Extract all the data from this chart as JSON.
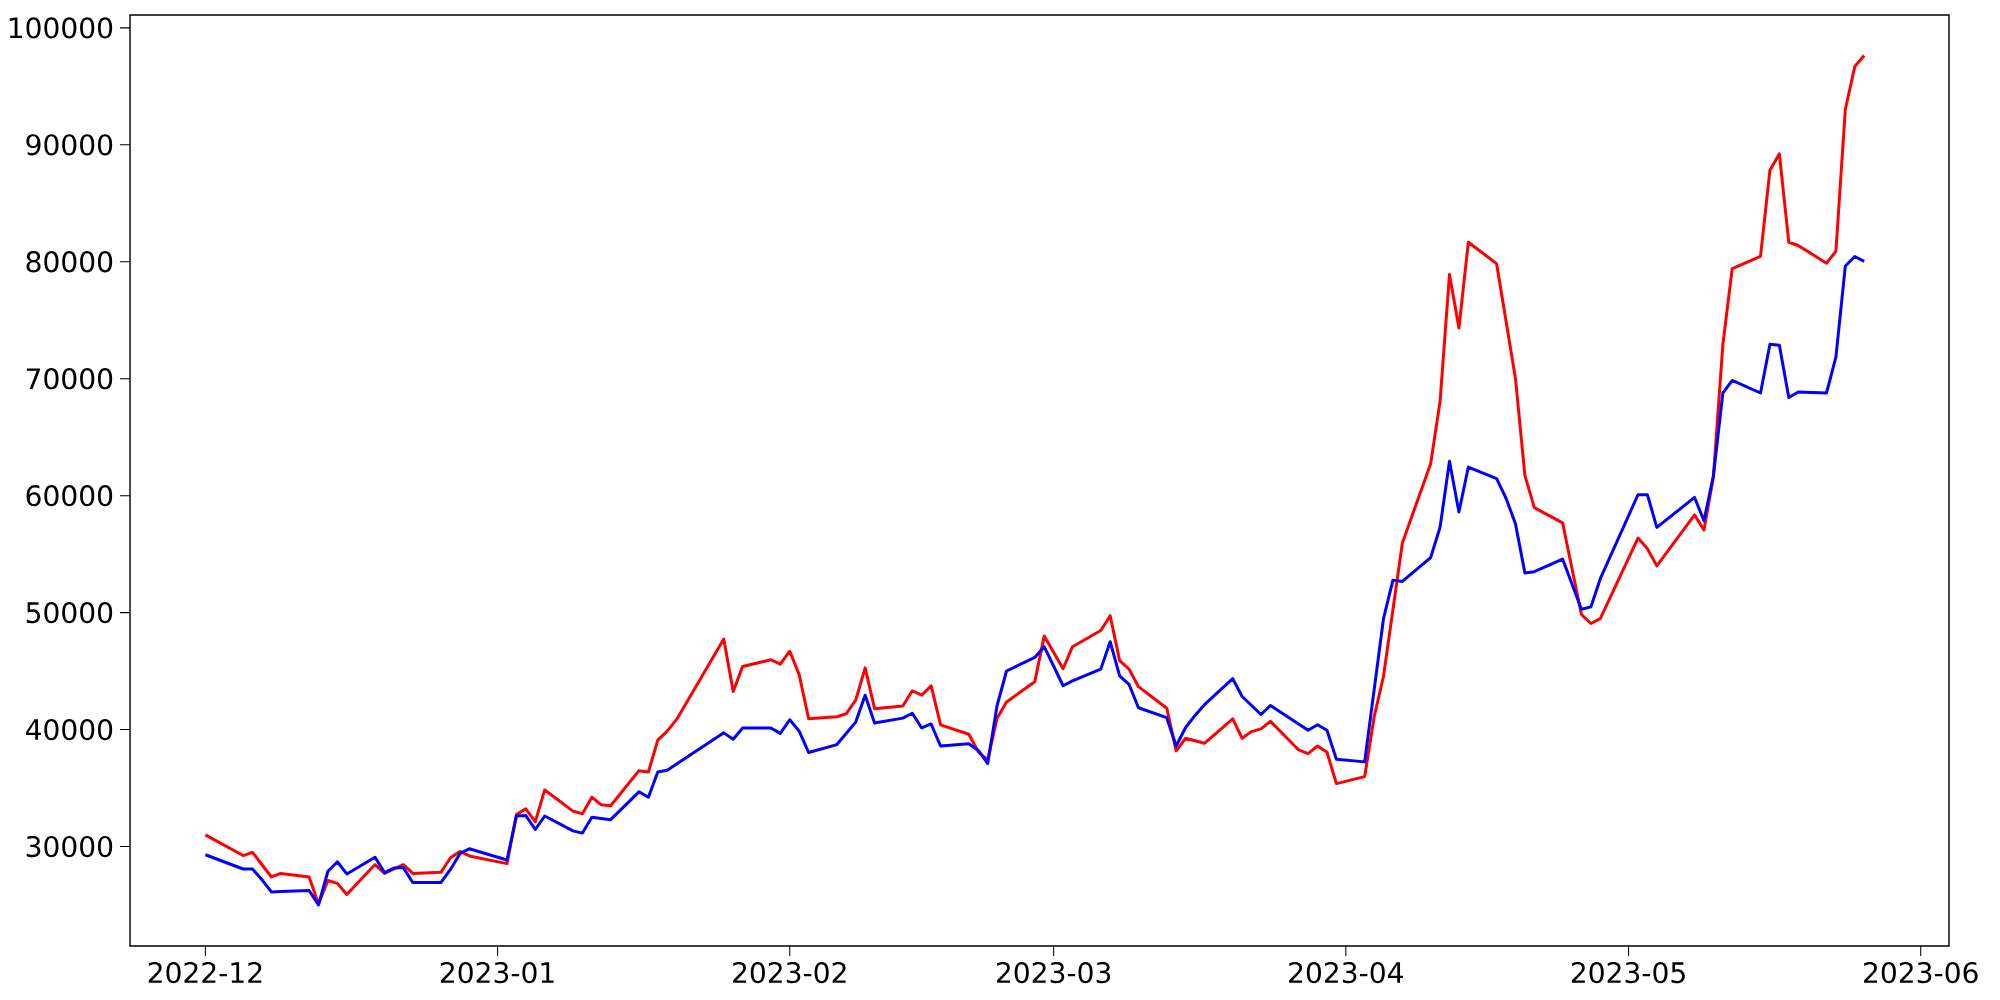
{
  "chart_data": {
    "type": "line",
    "xlim": [
      "2022-11-23",
      "2023-06-04"
    ],
    "ylim": [
      21500,
      101100
    ],
    "xticks": [
      {
        "value": "2022-12-01",
        "label": "2022-12"
      },
      {
        "value": "2023-01-01",
        "label": "2023-01"
      },
      {
        "value": "2023-02-01",
        "label": "2023-02"
      },
      {
        "value": "2023-03-01",
        "label": "2023-03"
      },
      {
        "value": "2023-04-01",
        "label": "2023-04"
      },
      {
        "value": "2023-05-01",
        "label": "2023-05"
      },
      {
        "value": "2023-06-01",
        "label": "2023-06"
      }
    ],
    "yticks": [
      30000,
      40000,
      50000,
      60000,
      70000,
      80000,
      90000,
      100000
    ],
    "grid": false,
    "marker": "none",
    "line_style": "solid",
    "series": [
      {
        "color": "#ff0000",
        "x": [
          "2022-12-01",
          "2022-12-05",
          "2022-12-06",
          "2022-12-08",
          "2022-12-09",
          "2022-12-12",
          "2022-12-13",
          "2022-12-14",
          "2022-12-15",
          "2022-12-16",
          "2022-12-19",
          "2022-12-20",
          "2022-12-22",
          "2022-12-23",
          "2022-12-26",
          "2022-12-27",
          "2022-12-28",
          "2022-12-29",
          "2023-01-02",
          "2023-01-03",
          "2023-01-04",
          "2023-01-05",
          "2023-01-06",
          "2023-01-09",
          "2023-01-10",
          "2023-01-11",
          "2023-01-12",
          "2023-01-13",
          "2023-01-16",
          "2023-01-17",
          "2023-01-18",
          "2023-01-19",
          "2023-01-20",
          "2023-01-25",
          "2023-01-26",
          "2023-01-27",
          "2023-01-30",
          "2023-01-31",
          "2023-02-01",
          "2023-02-02",
          "2023-02-03",
          "2023-02-06",
          "2023-02-07",
          "2023-02-08",
          "2023-02-09",
          "2023-02-10",
          "2023-02-13",
          "2023-02-14",
          "2023-02-15",
          "2023-02-16",
          "2023-02-17",
          "2023-02-20",
          "2023-02-21",
          "2023-02-22",
          "2023-02-23",
          "2023-02-24",
          "2023-02-27",
          "2023-02-28",
          "2023-03-02",
          "2023-03-03",
          "2023-03-06",
          "2023-03-07",
          "2023-03-08",
          "2023-03-09",
          "2023-03-10",
          "2023-03-13",
          "2023-03-14",
          "2023-03-15",
          "2023-03-17",
          "2023-03-20",
          "2023-03-21",
          "2023-03-22",
          "2023-03-23",
          "2023-03-24",
          "2023-03-27",
          "2023-03-28",
          "2023-03-29",
          "2023-03-30",
          "2023-03-31",
          "2023-04-03",
          "2023-04-04",
          "2023-04-05",
          "2023-04-07",
          "2023-04-10",
          "2023-04-11",
          "2023-04-12",
          "2023-04-13",
          "2023-04-14",
          "2023-04-17",
          "2023-04-19",
          "2023-04-20",
          "2023-04-21",
          "2023-04-24",
          "2023-04-26",
          "2023-04-27",
          "2023-04-28",
          "2023-05-02",
          "2023-05-03",
          "2023-05-04",
          "2023-05-08",
          "2023-05-09",
          "2023-05-10",
          "2023-05-11",
          "2023-05-12",
          "2023-05-15",
          "2023-05-16",
          "2023-05-17",
          "2023-05-18",
          "2023-05-19",
          "2023-05-22",
          "2023-05-23",
          "2023-05-24",
          "2023-05-25",
          "2023-05-26"
        ],
        "values": [
          31000,
          29230,
          29500,
          27400,
          27700,
          27400,
          25100,
          27100,
          26850,
          25900,
          28460,
          27700,
          28460,
          27700,
          27800,
          29040,
          29580,
          29200,
          28540,
          32730,
          33230,
          32110,
          34840,
          33030,
          32800,
          34220,
          33570,
          33490,
          36490,
          36370,
          39100,
          39870,
          40870,
          47740,
          43250,
          45400,
          45970,
          45590,
          46700,
          44700,
          40930,
          41100,
          41370,
          42520,
          45280,
          41790,
          42020,
          43320,
          42940,
          43750,
          40410,
          39600,
          38100,
          37410,
          40980,
          42360,
          44090,
          48010,
          45200,
          47090,
          48470,
          49740,
          45900,
          45170,
          43670,
          41830,
          38180,
          39260,
          38830,
          40910,
          39260,
          39830,
          40060,
          40710,
          38260,
          37950,
          38600,
          38060,
          35380,
          35980,
          41060,
          44560,
          55960,
          62720,
          68070,
          78920,
          74330,
          81670,
          79840,
          70020,
          61730,
          58980,
          57680,
          49840,
          49070,
          49490,
          56380,
          55470,
          54000,
          58360,
          57060,
          61600,
          72880,
          79420,
          80460,
          87830,
          89230,
          81670,
          81390,
          79880,
          80900,
          93020,
          96690,
          97640
        ]
      },
      {
        "color": "#0000ff",
        "x": [
          "2022-12-01",
          "2022-12-05",
          "2022-12-06",
          "2022-12-07",
          "2022-12-08",
          "2022-12-09",
          "2022-12-12",
          "2022-12-13",
          "2022-12-14",
          "2022-12-15",
          "2022-12-16",
          "2022-12-19",
          "2022-12-20",
          "2022-12-21",
          "2022-12-22",
          "2022-12-23",
          "2022-12-26",
          "2022-12-27",
          "2022-12-28",
          "2022-12-29",
          "2023-01-02",
          "2023-01-03",
          "2023-01-04",
          "2023-01-05",
          "2023-01-06",
          "2023-01-09",
          "2023-01-10",
          "2023-01-11",
          "2023-01-13",
          "2023-01-16",
          "2023-01-17",
          "2023-01-18",
          "2023-01-19",
          "2023-01-25",
          "2023-01-26",
          "2023-01-27",
          "2023-01-30",
          "2023-01-31",
          "2023-02-01",
          "2023-02-02",
          "2023-02-03",
          "2023-02-06",
          "2023-02-08",
          "2023-02-09",
          "2023-02-10",
          "2023-02-13",
          "2023-02-14",
          "2023-02-15",
          "2023-02-16",
          "2023-02-17",
          "2023-02-20",
          "2023-02-21",
          "2023-02-22",
          "2023-02-23",
          "2023-02-24",
          "2023-02-27",
          "2023-02-28",
          "2023-03-02",
          "2023-03-03",
          "2023-03-06",
          "2023-03-07",
          "2023-03-08",
          "2023-03-09",
          "2023-03-10",
          "2023-03-13",
          "2023-03-14",
          "2023-03-15",
          "2023-03-16",
          "2023-03-17",
          "2023-03-20",
          "2023-03-21",
          "2023-03-23",
          "2023-03-24",
          "2023-03-28",
          "2023-03-29",
          "2023-03-30",
          "2023-03-31",
          "2023-04-03",
          "2023-04-05",
          "2023-04-06",
          "2023-04-07",
          "2023-04-10",
          "2023-04-11",
          "2023-04-12",
          "2023-04-13",
          "2023-04-14",
          "2023-04-17",
          "2023-04-18",
          "2023-04-19",
          "2023-04-20",
          "2023-04-21",
          "2023-04-24",
          "2023-04-26",
          "2023-04-27",
          "2023-04-28",
          "2023-05-02",
          "2023-05-03",
          "2023-05-04",
          "2023-05-08",
          "2023-05-09",
          "2023-05-10",
          "2023-05-11",
          "2023-05-12",
          "2023-05-15",
          "2023-05-16",
          "2023-05-17",
          "2023-05-18",
          "2023-05-19",
          "2023-05-22",
          "2023-05-23",
          "2023-05-24",
          "2023-05-25",
          "2023-05-26"
        ],
        "values": [
          29300,
          28080,
          28080,
          27160,
          26120,
          26160,
          26240,
          25010,
          27890,
          28700,
          27660,
          29080,
          27770,
          28160,
          28200,
          26930,
          26930,
          28040,
          29390,
          29810,
          28850,
          32610,
          32650,
          31460,
          32610,
          31340,
          31150,
          32500,
          32300,
          34680,
          34220,
          36370,
          36530,
          39720,
          39180,
          40140,
          40140,
          39680,
          40840,
          39870,
          38040,
          38720,
          40640,
          42940,
          40560,
          40980,
          41400,
          40140,
          40480,
          38600,
          38790,
          38220,
          37100,
          42060,
          45010,
          46170,
          47090,
          43750,
          44170,
          45170,
          47510,
          44590,
          43860,
          41870,
          41020,
          38600,
          40180,
          41210,
          42130,
          44360,
          42830,
          41290,
          42060,
          39950,
          40410,
          39950,
          37460,
          37240,
          49500,
          52780,
          52670,
          54700,
          57300,
          62950,
          58600,
          62450,
          61460,
          59780,
          57600,
          53390,
          53500,
          54580,
          50290,
          50490,
          52900,
          60080,
          60080,
          57290,
          59850,
          57860,
          61680,
          68760,
          69850,
          68780,
          72950,
          72870,
          68400,
          68860,
          68780,
          71840,
          79640,
          80450,
          80030
        ]
      }
    ]
  }
}
